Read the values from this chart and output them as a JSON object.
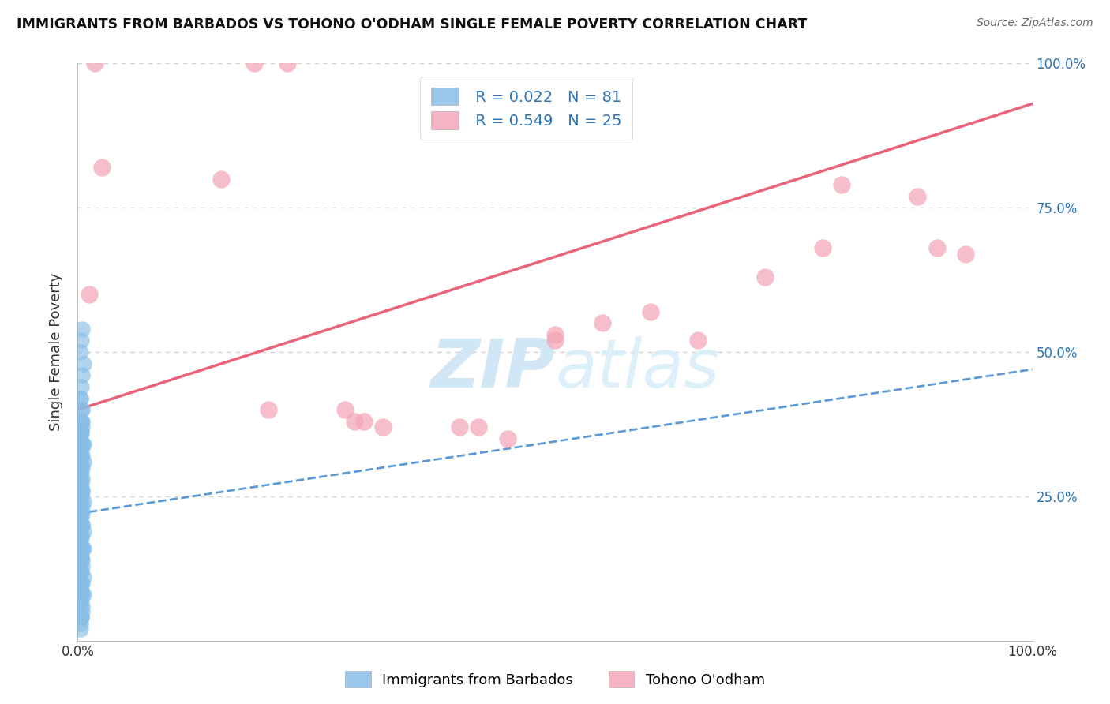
{
  "title": "IMMIGRANTS FROM BARBADOS VS TOHONO O'ODHAM SINGLE FEMALE POVERTY CORRELATION CHART",
  "source": "Source: ZipAtlas.com",
  "ylabel": "Single Female Poverty",
  "watermark_zip": "ZIP",
  "watermark_atlas": "atlas",
  "xlim": [
    0,
    1
  ],
  "ylim": [
    0,
    1
  ],
  "legend_r1": "R = 0.022",
  "legend_n1": "N = 81",
  "legend_r2": "R = 0.549",
  "legend_n2": "N = 25",
  "series1_label": "Immigrants from Barbados",
  "series2_label": "Tohono O'odham",
  "color_blue": "#88bde6",
  "color_pink": "#f4a7b9",
  "color_blue_line": "#5b9bd5",
  "color_pink_line": "#e8637a",
  "color_text_blue": "#2e75b6",
  "color_grid": "#c8c8c8",
  "blue_x": [
    0.003,
    0.004,
    0.003,
    0.005,
    0.004,
    0.003,
    0.005,
    0.004,
    0.003,
    0.006,
    0.005,
    0.004,
    0.003,
    0.004,
    0.005,
    0.004,
    0.003,
    0.005,
    0.004,
    0.003,
    0.005,
    0.006,
    0.004,
    0.003,
    0.005,
    0.004,
    0.003,
    0.005,
    0.004,
    0.006,
    0.004,
    0.003,
    0.005,
    0.004,
    0.003,
    0.005,
    0.004,
    0.003,
    0.005,
    0.004,
    0.006,
    0.005,
    0.004,
    0.003,
    0.005,
    0.004,
    0.003,
    0.005,
    0.004,
    0.006,
    0.004,
    0.003,
    0.005,
    0.004,
    0.003,
    0.005,
    0.004,
    0.003,
    0.005,
    0.004,
    0.006,
    0.005,
    0.004,
    0.003,
    0.005,
    0.004,
    0.003,
    0.005,
    0.004,
    0.006,
    0.005,
    0.003,
    0.004,
    0.005,
    0.003,
    0.004,
    0.005,
    0.006,
    0.004,
    0.003,
    0.005
  ],
  "blue_y": [
    0.42,
    0.4,
    0.38,
    0.37,
    0.36,
    0.35,
    0.34,
    0.33,
    0.32,
    0.31,
    0.3,
    0.29,
    0.28,
    0.27,
    0.26,
    0.25,
    0.24,
    0.23,
    0.22,
    0.21,
    0.2,
    0.19,
    0.18,
    0.17,
    0.16,
    0.15,
    0.14,
    0.13,
    0.12,
    0.11,
    0.1,
    0.09,
    0.08,
    0.07,
    0.06,
    0.05,
    0.04,
    0.03,
    0.38,
    0.36,
    0.34,
    0.32,
    0.3,
    0.28,
    0.26,
    0.24,
    0.22,
    0.2,
    0.18,
    0.16,
    0.44,
    0.42,
    0.4,
    0.38,
    0.36,
    0.34,
    0.32,
    0.3,
    0.28,
    0.26,
    0.24,
    0.22,
    0.2,
    0.18,
    0.16,
    0.14,
    0.12,
    0.1,
    0.08,
    0.48,
    0.46,
    0.5,
    0.52,
    0.54,
    0.02,
    0.04,
    0.06,
    0.08,
    0.1,
    0.12,
    0.14
  ],
  "pink_x": [
    0.018,
    0.185,
    0.22,
    0.025,
    0.15,
    0.28,
    0.29,
    0.42,
    0.5,
    0.55,
    0.72,
    0.78,
    0.8,
    0.88,
    0.9,
    0.93,
    0.3,
    0.32,
    0.4,
    0.45,
    0.5,
    0.6,
    0.65,
    0.012,
    0.2
  ],
  "pink_y": [
    1.0,
    1.0,
    1.0,
    0.82,
    0.8,
    0.4,
    0.38,
    0.37,
    0.52,
    0.55,
    0.63,
    0.68,
    0.79,
    0.77,
    0.68,
    0.67,
    0.38,
    0.37,
    0.37,
    0.35,
    0.53,
    0.57,
    0.52,
    0.6,
    0.4
  ],
  "blue_trendline_x": [
    0.0,
    1.0
  ],
  "blue_trendline_y": [
    0.22,
    0.47
  ],
  "pink_trendline_x": [
    0.0,
    1.0
  ],
  "pink_trendline_y": [
    0.4,
    0.93
  ]
}
